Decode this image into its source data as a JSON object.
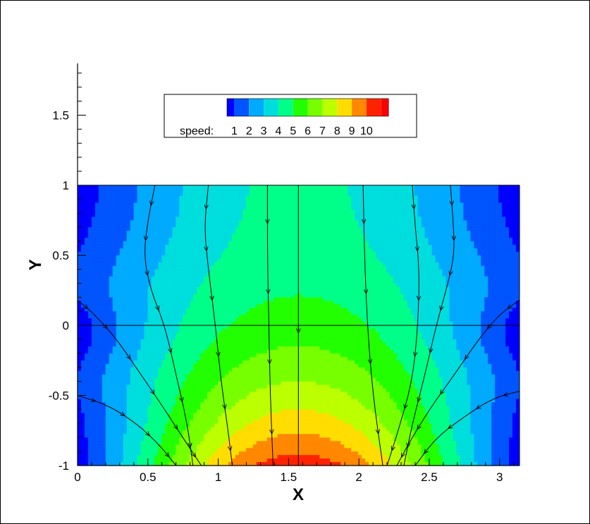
{
  "chart_data": {
    "type": "heatmap",
    "xlabel": "X",
    "ylabel": "Y",
    "xlim": [
      0,
      3.14159
    ],
    "ylim": [
      -1,
      1.85
    ],
    "field_ylim": [
      -1,
      1
    ],
    "x_ticks": [
      "0",
      "0.5",
      "1",
      "1.5",
      "2",
      "2.5",
      "3"
    ],
    "x_tick_values": [
      0,
      0.5,
      1,
      1.5,
      2,
      2.5,
      3
    ],
    "y_ticks": [
      "-1",
      "-0.5",
      "0",
      "0.5",
      "1",
      "1.5"
    ],
    "y_tick_values": [
      -1,
      -0.5,
      0,
      0.5,
      1,
      1.5
    ],
    "reference_line_y": 0,
    "legend": {
      "placement": "top-center",
      "label": "speed:",
      "levels": [
        "1",
        "2",
        "3",
        "4",
        "5",
        "6",
        "7",
        "8",
        "9",
        "10"
      ],
      "colors": [
        "#0000ff",
        "#0055ff",
        "#00aaff",
        "#00dddd",
        "#00ff88",
        "#22ff00",
        "#77ff00",
        "#bbff00",
        "#ffdd00",
        "#ff8800",
        "#ff2200",
        "#ff0000"
      ]
    },
    "streamlines": [
      {
        "name": "",
        "points": [
          [
            0.55,
            1.0
          ],
          [
            0.5,
            0.75
          ],
          [
            0.47,
            0.5
          ],
          [
            0.52,
            0.25
          ],
          [
            0.62,
            0.0
          ],
          [
            0.7,
            -0.35
          ],
          [
            0.78,
            -0.7
          ],
          [
            0.82,
            -1.0
          ]
        ]
      },
      {
        "name": "",
        "points": [
          [
            0.93,
            1.0
          ],
          [
            0.9,
            0.7
          ],
          [
            0.93,
            0.4
          ],
          [
            0.98,
            0.0
          ],
          [
            1.02,
            -0.4
          ],
          [
            1.07,
            -0.75
          ],
          [
            1.1,
            -1.0
          ]
        ]
      },
      {
        "name": "",
        "points": [
          [
            1.35,
            1.0
          ],
          [
            1.35,
            0.5
          ],
          [
            1.36,
            0.0
          ],
          [
            1.37,
            -0.5
          ],
          [
            1.39,
            -1.0
          ]
        ]
      },
      {
        "name": "",
        "points": [
          [
            1.57,
            1.0
          ],
          [
            1.57,
            -1.0
          ]
        ]
      },
      {
        "name": "",
        "points": [
          [
            2.03,
            1.0
          ],
          [
            2.04,
            0.5
          ],
          [
            2.06,
            0.0
          ],
          [
            2.1,
            -0.5
          ],
          [
            2.17,
            -1.0
          ]
        ]
      },
      {
        "name": "",
        "points": [
          [
            2.38,
            1.0
          ],
          [
            2.4,
            0.7
          ],
          [
            2.43,
            0.4
          ],
          [
            2.42,
            0.0
          ],
          [
            2.38,
            -0.4
          ],
          [
            2.28,
            -0.75
          ],
          [
            2.2,
            -1.0
          ]
        ]
      },
      {
        "name": "",
        "points": [
          [
            2.65,
            1.0
          ],
          [
            2.67,
            0.75
          ],
          [
            2.68,
            0.5
          ],
          [
            2.62,
            0.25
          ],
          [
            2.55,
            0.0
          ],
          [
            2.47,
            -0.35
          ],
          [
            2.38,
            -0.7
          ],
          [
            2.32,
            -1.0
          ]
        ]
      },
      {
        "name": "",
        "points": [
          [
            0.0,
            0.18
          ],
          [
            0.12,
            0.08
          ],
          [
            0.28,
            -0.1
          ],
          [
            0.45,
            -0.35
          ],
          [
            0.62,
            -0.6
          ],
          [
            0.78,
            -0.85
          ],
          [
            0.88,
            -1.0
          ]
        ]
      },
      {
        "name": "",
        "points": [
          [
            3.14,
            0.18
          ],
          [
            3.0,
            0.08
          ],
          [
            2.85,
            -0.1
          ],
          [
            2.68,
            -0.35
          ],
          [
            2.5,
            -0.6
          ],
          [
            2.35,
            -0.85
          ],
          [
            2.27,
            -1.0
          ]
        ]
      },
      {
        "name": "",
        "points": [
          [
            0.0,
            -0.5
          ],
          [
            0.22,
            -0.57
          ],
          [
            0.42,
            -0.7
          ],
          [
            0.58,
            -0.85
          ],
          [
            0.7,
            -1.0
          ]
        ]
      },
      {
        "name": "",
        "points": [
          [
            3.14,
            -0.47
          ],
          [
            2.95,
            -0.52
          ],
          [
            2.75,
            -0.65
          ],
          [
            2.55,
            -0.8
          ],
          [
            2.4,
            -1.0
          ]
        ]
      }
    ]
  }
}
